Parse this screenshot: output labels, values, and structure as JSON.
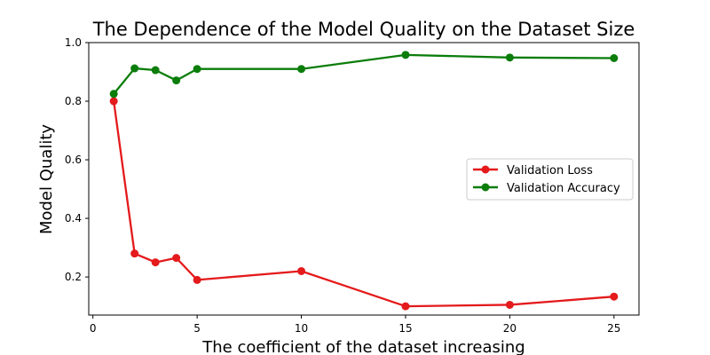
{
  "chart_data": {
    "type": "line",
    "title": "The Dependence of the Model Quality on the Dataset Size",
    "xlabel": "The coefficient of the dataset increasing",
    "ylabel": "Model Quality",
    "xlim": [
      -0.2,
      26.2
    ],
    "ylim": [
      0.07,
      1.0
    ],
    "xticks": [
      0,
      5,
      10,
      15,
      20,
      25
    ],
    "yticks": [
      0.2,
      0.4,
      0.6,
      0.8,
      1.0
    ],
    "xtick_labels": [
      "0",
      "5",
      "10",
      "15",
      "20",
      "25"
    ],
    "ytick_labels": [
      "0.2",
      "0.4",
      "0.6",
      "0.8",
      "1.0"
    ],
    "grid": false,
    "legend_position": "center-right",
    "series": [
      {
        "name": "Validation Loss",
        "color": "#e41a1c",
        "x": [
          1,
          2,
          3,
          4,
          5,
          10,
          15,
          20,
          25
        ],
        "y": [
          0.8,
          0.28,
          0.25,
          0.265,
          0.19,
          0.22,
          0.1,
          0.105,
          0.133
        ]
      },
      {
        "name": "Validation Accuracy",
        "color": "#0a7d0a",
        "x": [
          1,
          2,
          3,
          4,
          5,
          10,
          15,
          20,
          25
        ],
        "y": [
          0.825,
          0.912,
          0.906,
          0.871,
          0.91,
          0.91,
          0.958,
          0.949,
          0.947
        ]
      }
    ]
  }
}
